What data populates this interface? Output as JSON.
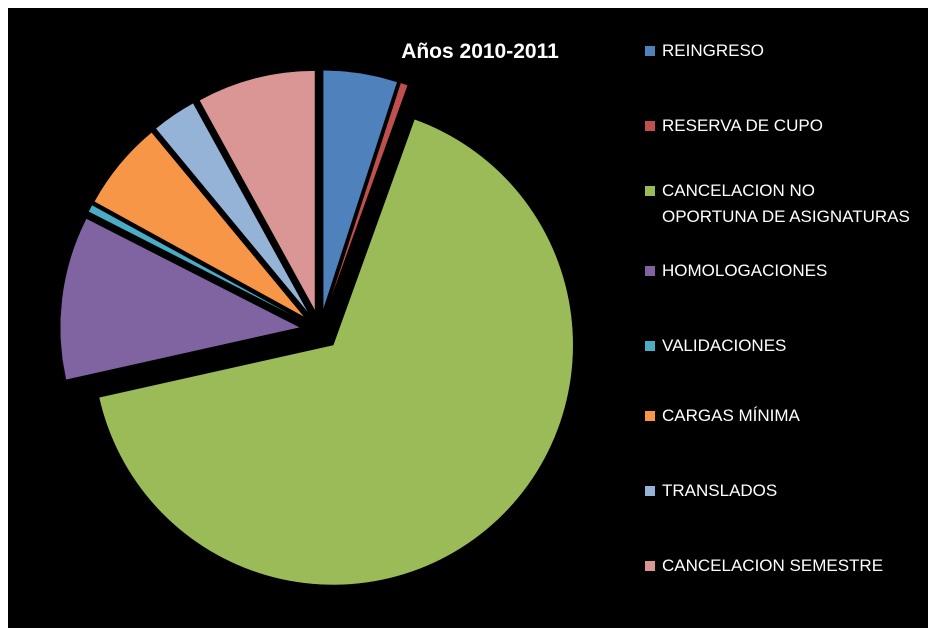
{
  "chart_data": {
    "type": "pie",
    "title": "Años 2010-2011",
    "categories": [
      "REINGRESO",
      "RESERVA DE CUPO",
      "CANCELACION NO OPORTUNA DE ASIGNATURAS",
      "HOMOLOGACIONES",
      "VALIDACIONES",
      "CARGAS MÍNIMA",
      "TRANSLADOS",
      "CANCELACION SEMESTRE"
    ],
    "values": [
      5,
      0.5,
      66,
      11,
      0.5,
      6,
      3,
      8
    ],
    "colors": [
      "#4f81bd",
      "#c0504d",
      "#9bbb59",
      "#8064a2",
      "#4bacc6",
      "#f79646",
      "#95b3d7",
      "#d99694"
    ],
    "legend": "right"
  }
}
